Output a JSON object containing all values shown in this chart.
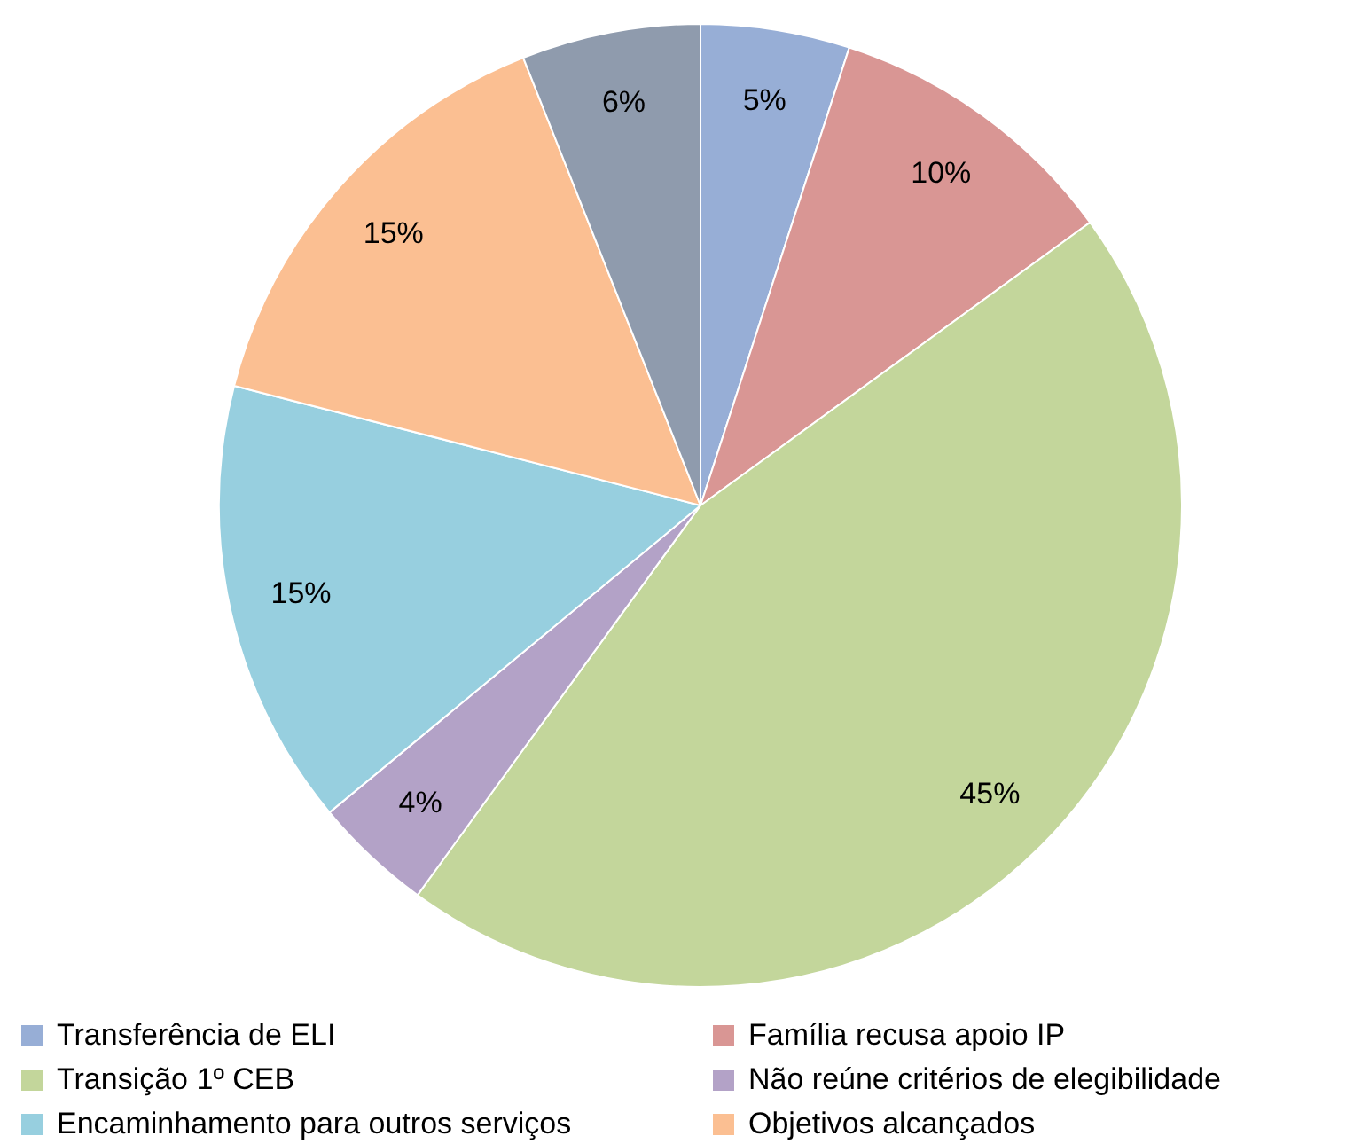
{
  "chart_data": {
    "type": "pie",
    "categories": [
      "Transferência de ELI",
      "Família recusa apoio IP",
      "Transição 1º CEB",
      "Não reúne critérios de elegibilidade",
      "Encaminhamento para outros serviços",
      "Objetivos alcançados",
      null
    ],
    "values": [
      5,
      10,
      45,
      4,
      15,
      15,
      6
    ],
    "value_labels": [
      "5%",
      "10%",
      "45%",
      "4%",
      "15%",
      "15%",
      "6%"
    ],
    "colors": [
      "#97aed6",
      "#d99694",
      "#c3d69b",
      "#b3a2c7",
      "#97cfdf",
      "#fbbf92",
      "#8f9bad"
    ],
    "legend": "bottom"
  }
}
